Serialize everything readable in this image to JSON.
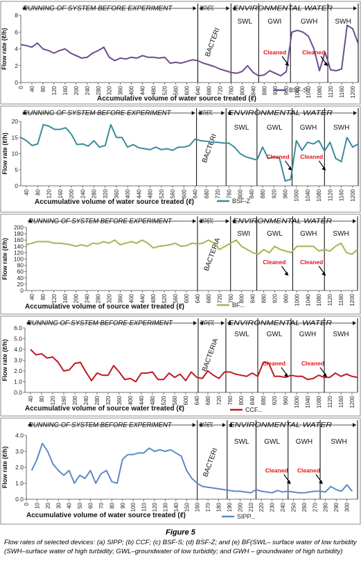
{
  "figure": {
    "label": "Figure 5",
    "caption": "Flow rates of selected devices: (a) SIPP; (b) CCF; (c) BSF-S; (d) BSF-Z; and (e) BF(SWL– surface water of low turbidity (SWH–surface water of high turbidity; GWL–groundwater of low turbidity; and GWH – groundwater of high turbidity)"
  },
  "colors": {
    "bsf_s": "#6b4c8c",
    "bsf_z": "#3b8a9c",
    "bf": "#a4b550",
    "ccf": "#c0181f",
    "sipp": "#5b8ac6",
    "annot": "#e0151b"
  },
  "chart_data": [
    {
      "type": "line",
      "ylabel": "Flow rate (ℓ/h)",
      "xlabel": "Accumulative volume of water source treated (ℓ)",
      "ylim": [
        0,
        8
      ],
      "yticks": [
        0,
        2,
        4,
        6,
        8
      ],
      "ytick_labels": [
        "0",
        "2",
        "4",
        "6",
        "8"
      ],
      "xlim": [
        0,
        1220
      ],
      "xticks": [
        0,
        40,
        80,
        120,
        160,
        200,
        240,
        280,
        320,
        360,
        400,
        440,
        480,
        520,
        560,
        600,
        640,
        680,
        720,
        760,
        800,
        840,
        880,
        920,
        960,
        1000,
        1040,
        1080,
        1120,
        1160,
        1200
      ],
      "phases": [
        "RUNNING OF SYSTEM BEFORE EXPERIMENT",
        "SYNTHETIC",
        "ENVIRONMENTAL WATER"
      ],
      "phase_bounds": [
        0,
        640,
        760,
        1220
      ],
      "sections": [
        {
          "label": "BACTERI",
          "x0": 640,
          "x1": 760,
          "rot": true
        },
        {
          "label": "SWL",
          "x0": 760,
          "x1": 860
        },
        {
          "label": "GWI",
          "x0": 860,
          "x1": 975
        },
        {
          "label": "GWH",
          "x0": 975,
          "x1": 1110
        },
        {
          "label": "SWH",
          "x0": 1110,
          "x1": 1220
        }
      ],
      "cleaned": [
        960,
        1100
      ],
      "series": [
        {
          "name": "BSF-S",
          "x": [
            0,
            20,
            40,
            60,
            80,
            100,
            120,
            140,
            160,
            180,
            200,
            220,
            240,
            260,
            280,
            300,
            320,
            340,
            360,
            380,
            400,
            420,
            440,
            460,
            480,
            500,
            520,
            540,
            560,
            580,
            600,
            620,
            640,
            660,
            680,
            700,
            720,
            740,
            760,
            780,
            800,
            820,
            840,
            860,
            880,
            900,
            920,
            940,
            960,
            980,
            1000,
            1020,
            1040,
            1060,
            1080,
            1100,
            1120,
            1140,
            1160,
            1180,
            1200,
            1220
          ],
          "y": [
            4.5,
            4.4,
            4.2,
            4.7,
            4.0,
            3.8,
            3.5,
            3.8,
            4.0,
            3.5,
            3.2,
            2.9,
            3.0,
            3.5,
            3.8,
            4.2,
            3.0,
            2.6,
            2.9,
            2.8,
            3.0,
            2.9,
            3.2,
            3.0,
            3.0,
            2.9,
            3.0,
            2.3,
            2.4,
            2.3,
            2.5,
            2.7,
            2.6,
            2.3,
            2.1,
            1.9,
            1.6,
            1.4,
            1.2,
            1.1,
            1.3,
            2.0,
            1.2,
            0.8,
            0.9,
            1.4,
            1.1,
            0.8,
            1.3,
            6.0,
            6.2,
            6.0,
            5.5,
            4.0,
            1.4,
            3.6,
            1.5,
            1.4,
            1.6,
            6.8,
            6.4,
            4.6
          ]
        }
      ]
    },
    {
      "type": "line",
      "ylabel": "Flow rate (ℓ/h)",
      "xlabel": "Accumulative volume of water source treated (ℓ)",
      "ylim": [
        0,
        20
      ],
      "yticks": [
        0,
        5,
        10,
        15,
        20
      ],
      "ytick_labels": [
        "0",
        "5",
        "10",
        "15",
        "20"
      ],
      "xlim": [
        20,
        1220
      ],
      "xticks": [
        40,
        80,
        120,
        160,
        200,
        240,
        280,
        320,
        360,
        400,
        440,
        480,
        520,
        560,
        600,
        640,
        680,
        720,
        760,
        800,
        840,
        880,
        920,
        960,
        1000,
        1040,
        1080,
        1120,
        1160,
        1200
      ],
      "phases": [
        "RUNNING OF SYSTEM BEFORE EXPERIMENT",
        "SYNTHETIC",
        "ENVIRONMENTAL WATER"
      ],
      "phase_bounds": [
        20,
        645,
        750,
        1220
      ],
      "sections": [
        {
          "label": "BACTERI",
          "x0": 645,
          "x1": 750,
          "rot": true
        },
        {
          "label": "SWL",
          "x0": 750,
          "x1": 860
        },
        {
          "label": "GWL",
          "x0": 860,
          "x1": 985
        },
        {
          "label": "GWH",
          "x0": 985,
          "x1": 1100
        },
        {
          "label": "SWH",
          "x0": 1100,
          "x1": 1220
        }
      ],
      "cleaned": [
        975,
        1095
      ],
      "series": [
        {
          "name": "BSF-Z",
          "x": [
            20,
            40,
            60,
            80,
            100,
            120,
            140,
            160,
            180,
            200,
            220,
            240,
            260,
            280,
            300,
            320,
            340,
            360,
            380,
            400,
            420,
            440,
            460,
            480,
            500,
            520,
            540,
            560,
            580,
            600,
            620,
            640,
            660,
            680,
            700,
            720,
            740,
            760,
            780,
            800,
            820,
            840,
            860,
            880,
            900,
            920,
            940,
            960,
            980,
            1000,
            1020,
            1040,
            1060,
            1080,
            1100,
            1120,
            1140,
            1160,
            1180,
            1200,
            1220
          ],
          "y": [
            15,
            14,
            12.5,
            13,
            19,
            18.5,
            17.5,
            17.5,
            18,
            16,
            12.8,
            13,
            12.3,
            14,
            12,
            12.5,
            19,
            15,
            15,
            12,
            12.8,
            11.8,
            11.5,
            11.2,
            12,
            11.2,
            11.5,
            11,
            12,
            12,
            12.5,
            14.5,
            14,
            13.8,
            13.5,
            13.5,
            13.3,
            13.2,
            12,
            10,
            9,
            8.5,
            8,
            12,
            8.5,
            9,
            8.5,
            1.5,
            2,
            14,
            11,
            13.5,
            13,
            14,
            10.8,
            13.5,
            8.5,
            7.5,
            15,
            12,
            13
          ]
        }
      ]
    },
    {
      "type": "line",
      "ylabel": "Flow rate (ℓ/h)",
      "xlabel": "Accumulative volume of source water treated (ℓ)",
      "ylim": [
        0,
        200
      ],
      "yticks": [
        0,
        20,
        40,
        60,
        80,
        100,
        120,
        140,
        160,
        180,
        200
      ],
      "ytick_labels": [
        "0",
        "20",
        "40",
        "60",
        "80",
        "100",
        "120",
        "140",
        "160",
        "180",
        "200"
      ],
      "xlim": [
        20,
        1220
      ],
      "xticks": [
        40,
        80,
        120,
        160,
        200,
        240,
        280,
        320,
        360,
        400,
        440,
        480,
        520,
        560,
        600,
        640,
        680,
        720,
        760,
        800,
        840,
        880,
        920,
        960,
        1000,
        1040,
        1080,
        1120,
        1160,
        1200
      ],
      "phases": [
        "RUNNING OF SYSTEM BEFORE EXPERIMENT",
        "SYNTHETIC",
        "ENVIRONMENTAL WATER"
      ],
      "phase_bounds": [
        20,
        640,
        760,
        1220
      ],
      "sections": [
        {
          "label": "BACTERIA",
          "x0": 640,
          "x1": 760,
          "rot": true
        },
        {
          "label": "SWI",
          "x0": 760,
          "x1": 855
        },
        {
          "label": "GWL",
          "x0": 855,
          "x1": 985
        },
        {
          "label": "GWH",
          "x0": 985,
          "x1": 1100
        },
        {
          "label": "SWH",
          "x0": 1100,
          "x1": 1220
        }
      ],
      "cleaned": [
        960,
        1095
      ],
      "series": [
        {
          "name": "BF...",
          "x": [
            20,
            40,
            60,
            80,
            100,
            120,
            140,
            160,
            180,
            200,
            220,
            240,
            260,
            280,
            300,
            320,
            340,
            360,
            380,
            400,
            420,
            440,
            460,
            480,
            500,
            520,
            540,
            560,
            580,
            600,
            620,
            640,
            660,
            680,
            700,
            720,
            740,
            760,
            780,
            800,
            820,
            840,
            860,
            880,
            900,
            920,
            940,
            960,
            980,
            1000,
            1020,
            1040,
            1060,
            1080,
            1100,
            1120,
            1140,
            1160,
            1180,
            1200,
            1220
          ],
          "y": [
            145,
            150,
            155,
            155,
            155,
            150,
            150,
            148,
            145,
            140,
            145,
            140,
            150,
            148,
            155,
            150,
            160,
            145,
            150,
            155,
            150,
            160,
            150,
            135,
            140,
            142,
            145,
            150,
            140,
            142,
            150,
            148,
            150,
            160,
            150,
            130,
            140,
            150,
            160,
            140,
            130,
            120,
            115,
            130,
            120,
            140,
            130,
            125,
            120,
            140,
            140,
            140,
            140,
            125,
            130,
            125,
            140,
            150,
            120,
            115,
            130
          ]
        }
      ]
    },
    {
      "type": "line",
      "ylabel": "Flow rate (ℓ/h)",
      "xlabel": "Accumulative volume of source water treated (ℓ)",
      "ylim": [
        0,
        6
      ],
      "yticks": [
        0,
        1,
        2,
        3,
        4,
        5,
        6
      ],
      "ytick_labels": [
        "0.0",
        "1.0",
        "2.0",
        "3.0",
        "4.0",
        "5.0",
        "6.0"
      ],
      "xlim": [
        20,
        1220
      ],
      "xticks": [
        40,
        80,
        120,
        160,
        200,
        240,
        280,
        320,
        360,
        400,
        440,
        480,
        520,
        560,
        600,
        640,
        680,
        720,
        760,
        800,
        840,
        880,
        920,
        960,
        1000,
        1040,
        1080,
        1120,
        1160,
        1200
      ],
      "phases": [
        "RUNNING OF SYSTEM BEFORE EXPERIMENT",
        "SYNTHETIC",
        "ENVIRONMENTAL WATER"
      ],
      "phase_bounds": [
        20,
        645,
        745,
        1220
      ],
      "sections": [
        {
          "label": "BACTERIA",
          "x0": 645,
          "x1": 745,
          "rot": true
        },
        {
          "label": "SWL",
          "x0": 745,
          "x1": 860
        },
        {
          "label": "GWL",
          "x0": 860,
          "x1": 980
        },
        {
          "label": "GWH",
          "x0": 980,
          "x1": 1100
        },
        {
          "label": "SWH",
          "x0": 1100,
          "x1": 1220
        }
      ],
      "cleaned": [
        960,
        1100
      ],
      "series": [
        {
          "name": "CCF...",
          "x": [
            40,
            60,
            80,
            100,
            120,
            140,
            160,
            180,
            200,
            220,
            240,
            260,
            280,
            300,
            320,
            340,
            360,
            380,
            400,
            420,
            440,
            460,
            480,
            500,
            520,
            540,
            560,
            580,
            600,
            620,
            640,
            660,
            680,
            700,
            720,
            740,
            760,
            780,
            800,
            820,
            840,
            860,
            880,
            900,
            920,
            940,
            960,
            980,
            1000,
            1020,
            1040,
            1060,
            1080,
            1100,
            1120,
            1140,
            1160,
            1180,
            1200,
            1220
          ],
          "y": [
            4.0,
            3.5,
            3.6,
            3.2,
            3.3,
            2.8,
            2.0,
            2.1,
            2.7,
            2.8,
            1.9,
            1.1,
            1.8,
            1.6,
            1.6,
            2.5,
            1.9,
            1.2,
            1.3,
            1.0,
            1.8,
            1.8,
            1.9,
            1.2,
            1.2,
            1.8,
            1.4,
            1.7,
            1.1,
            1.9,
            1.4,
            1.3,
            2.0,
            1.6,
            1.3,
            1.9,
            1.9,
            1.7,
            1.6,
            1.5,
            1.8,
            1.5,
            2.8,
            2.7,
            1.5,
            1.5,
            1.4,
            1.6,
            1.5,
            1.5,
            1.2,
            1.3,
            1.6,
            1.4,
            1.4,
            1.8,
            1.5,
            1.7,
            1.5,
            1.4
          ]
        }
      ]
    },
    {
      "type": "line",
      "ylabel": "Flow rate (ℓ/h)",
      "xlabel": "Accumulative volume of water source treated (ℓ)",
      "ylim": [
        0,
        4
      ],
      "yticks": [
        0,
        1,
        2,
        3,
        4
      ],
      "ytick_labels": [
        "0.0",
        "1.0",
        "2.0",
        "3.0",
        "4.0"
      ],
      "xlim": [
        0,
        310
      ],
      "xticks": [
        0,
        10,
        20,
        30,
        40,
        50,
        60,
        70,
        80,
        90,
        100,
        110,
        120,
        130,
        140,
        150,
        160,
        170,
        180,
        190,
        200,
        210,
        220,
        230,
        240,
        250,
        260,
        270,
        280,
        290,
        300
      ],
      "phases": [
        "RUNNING OF SYSTEM BEFORE EXPERIMENT",
        "SYNTHETIC",
        "ENVIRONMENTAL WATER"
      ],
      "phase_bounds": [
        0,
        160,
        188,
        310
      ],
      "sections": [
        {
          "label": "BACTERI",
          "x0": 160,
          "x1": 188,
          "rot": true
        },
        {
          "label": "SWL",
          "x0": 188,
          "x1": 215
        },
        {
          "label": "GWL",
          "x0": 215,
          "x1": 245
        },
        {
          "label": "GWH",
          "x0": 245,
          "x1": 275
        },
        {
          "label": "SWH",
          "x0": 275,
          "x1": 310
        }
      ],
      "cleaned": [
        245,
        275
      ],
      "series": [
        {
          "name": "SIPP...",
          "x": [
            5,
            10,
            15,
            20,
            25,
            30,
            35,
            40,
            45,
            50,
            55,
            60,
            65,
            70,
            75,
            80,
            85,
            90,
            95,
            100,
            105,
            110,
            115,
            120,
            125,
            130,
            135,
            140,
            145,
            150,
            155,
            160,
            165,
            170,
            175,
            180,
            185,
            190,
            195,
            200,
            205,
            210,
            215,
            220,
            225,
            230,
            235,
            240,
            245,
            250,
            255,
            260,
            265,
            270,
            275,
            280,
            285,
            290,
            295,
            300,
            305
          ],
          "y": [
            1.8,
            2.5,
            3.5,
            3.0,
            2.2,
            1.8,
            1.5,
            1.8,
            1.0,
            1.5,
            1.3,
            1.8,
            1.0,
            1.6,
            1.8,
            1.1,
            1.0,
            2.5,
            2.8,
            2.8,
            2.9,
            2.9,
            3.2,
            3.0,
            3.1,
            3.0,
            3.1,
            2.9,
            2.7,
            1.8,
            1.3,
            1.0,
            0.8,
            0.75,
            0.7,
            0.65,
            0.6,
            0.55,
            0.5,
            0.5,
            0.45,
            0.4,
            0.6,
            0.5,
            0.45,
            0.4,
            0.55,
            0.45,
            0.5,
            0.45,
            0.4,
            0.4,
            0.45,
            0.5,
            0.5,
            0.45,
            0.8,
            0.6,
            0.5,
            0.9,
            0.5
          ]
        }
      ]
    }
  ]
}
